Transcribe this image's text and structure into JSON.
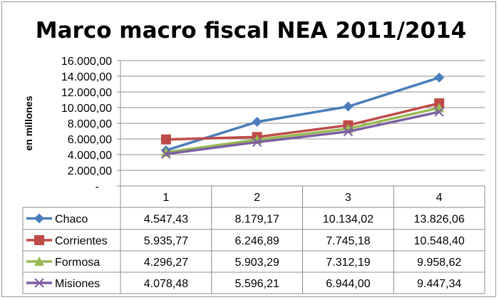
{
  "chart_data": {
    "type": "line",
    "title": "Marco macro fiscal   NEA 2011/2014",
    "ylabel": "en millones",
    "xlabel": "",
    "categories": [
      "1",
      "2",
      "3",
      "4"
    ],
    "ylim": [
      0,
      16000
    ],
    "yticks": [
      0,
      2000,
      4000,
      6000,
      8000,
      10000,
      12000,
      14000,
      16000
    ],
    "ytick_labels": [
      "-",
      "2.000,00",
      "4.000,00",
      "6.000,00",
      "8.000,00",
      "10.000,00",
      "12.000,00",
      "14.000,00",
      "16.000,00"
    ],
    "grid": true,
    "legend": "data-table",
    "series": [
      {
        "name": "Chaco",
        "color": "#4a7ebb",
        "marker": "diamond",
        "values": [
          4547.43,
          8179.17,
          10134.02,
          13826.06
        ],
        "labels": [
          "4.547,43",
          "8.179,17",
          "10.134,02",
          "13.826,06"
        ]
      },
      {
        "name": "Corrientes",
        "color": "#be4b48",
        "marker": "square",
        "values": [
          5935.77,
          6246.89,
          7745.18,
          10548.4
        ],
        "labels": [
          "5.935,77",
          "6.246,89",
          "7.745,18",
          "10.548,40"
        ]
      },
      {
        "name": "Formosa",
        "color": "#98b954",
        "marker": "triangle",
        "values": [
          4296.27,
          5903.29,
          7312.19,
          9958.62
        ],
        "labels": [
          "4.296,27",
          "5.903,29",
          "7.312,19",
          "9.958,62"
        ]
      },
      {
        "name": "Misiones",
        "color": "#7d60a0",
        "marker": "x",
        "values": [
          4078.48,
          5596.21,
          6944.0,
          9447.34
        ],
        "labels": [
          "4.078,48",
          "5.596,21",
          "6.944,00",
          "9.447,34"
        ]
      }
    ]
  }
}
